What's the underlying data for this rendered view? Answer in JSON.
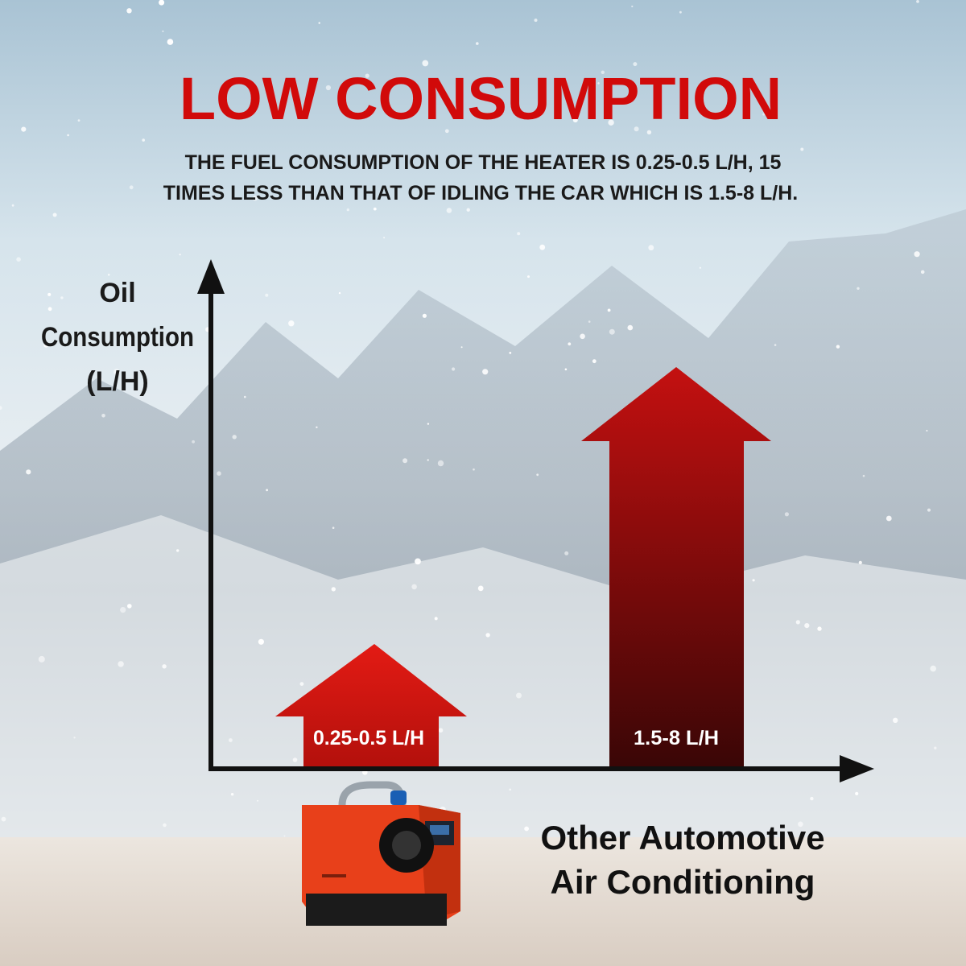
{
  "header": {
    "title": "LOW CONSUMPTION",
    "subtitle_lines": [
      "THE FUEL CONSUMPTION OF THE HEATER IS 0.25-0.5 L/H, 15",
      "TIMES LESS THAN THAT OF IDLING THE CAR WHICH IS 1.5-8 L/H."
    ]
  },
  "axis_label_lines": [
    "Oil",
    "Consumption",
    "(L/H)"
  ],
  "arrows": [
    {
      "label": "0.25-0.5 L/H"
    },
    {
      "label": "1.5-8 L/H"
    }
  ],
  "product_label_lines": [
    "Other Automotive",
    "Air Conditioning"
  ]
}
